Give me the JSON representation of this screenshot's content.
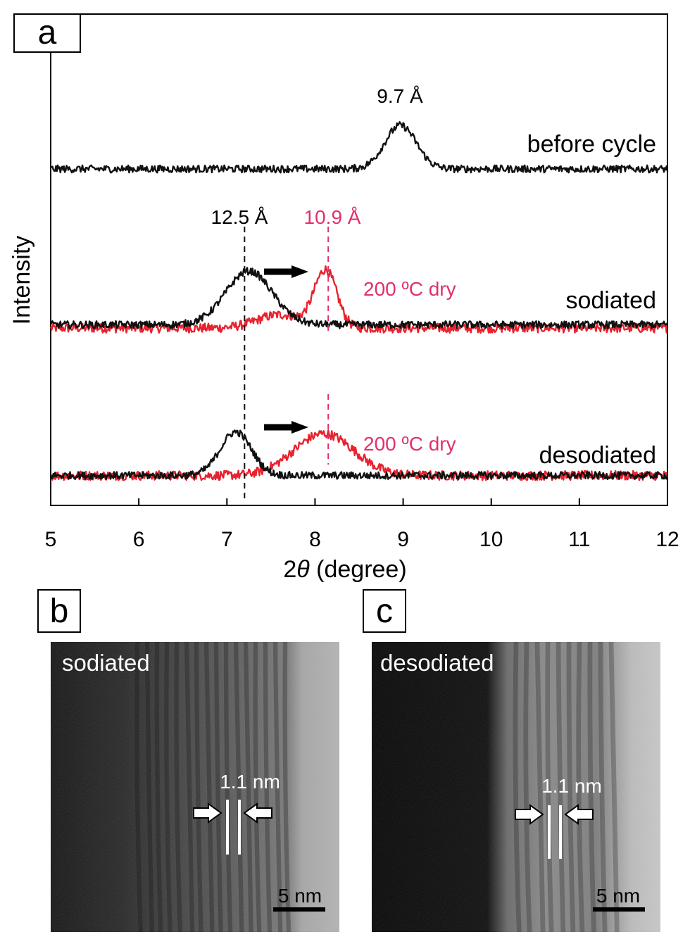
{
  "panel_labels": {
    "a": "a",
    "b": "b",
    "c": "c"
  },
  "colors": {
    "black_trace": "#111111",
    "red_trace": "#e8222e",
    "red_label": "#e0306a"
  },
  "chart_data": {
    "type": "line",
    "xlabel_prefix": "2",
    "xlabel_symbol": "θ",
    "xlabel_suffix": " (degree)",
    "ylabel": "Intensity",
    "xlim": [
      5,
      12
    ],
    "x_ticks": [
      "5",
      "6",
      "7",
      "8",
      "9",
      "10",
      "11",
      "12"
    ],
    "grid": false,
    "traces": [
      {
        "label": "before cycle",
        "color": "black",
        "baseline": 0.0,
        "peaks": [
          {
            "center": 8.97,
            "height": 0.26,
            "width": 0.42
          }
        ]
      },
      {
        "label": "sodiated",
        "color": "black",
        "baseline": -0.93,
        "peaks": [
          {
            "center": 7.25,
            "height": 0.32,
            "width": 0.62
          }
        ]
      },
      {
        "label": "200 ºC dry",
        "color": "red",
        "baseline": -0.95,
        "peaks": [
          {
            "center": 8.12,
            "height": 0.34,
            "width": 0.3
          },
          {
            "center": 7.6,
            "height": 0.08,
            "width": 0.6
          }
        ]
      },
      {
        "label": "desodiated",
        "color": "black",
        "baseline": -1.83,
        "peaks": [
          {
            "center": 7.1,
            "height": 0.26,
            "width": 0.42
          }
        ]
      },
      {
        "label": "200 ºC dry",
        "color": "red",
        "baseline": -1.83,
        "peaks": [
          {
            "center": 8.1,
            "height": 0.25,
            "width": 0.8
          }
        ]
      }
    ],
    "annotations": {
      "peak_before": "9.7 Å",
      "peak_black": "12.5 Å",
      "peak_red": "10.9 Å",
      "dry_sodiated": "200 ºC dry",
      "dry_desodiated": "200 ºC dry",
      "label_before": "before cycle",
      "label_sodiated": "sodiated",
      "label_desodiated": "desodiated"
    },
    "dashed_lines_x": [
      7.2,
      8.15
    ]
  },
  "tem_b": {
    "label": "sodiated",
    "spacing": "1.1 nm",
    "scalebar": "5 nm"
  },
  "tem_c": {
    "label": "desodiated",
    "spacing": "1.1 nm",
    "scalebar": "5 nm"
  }
}
